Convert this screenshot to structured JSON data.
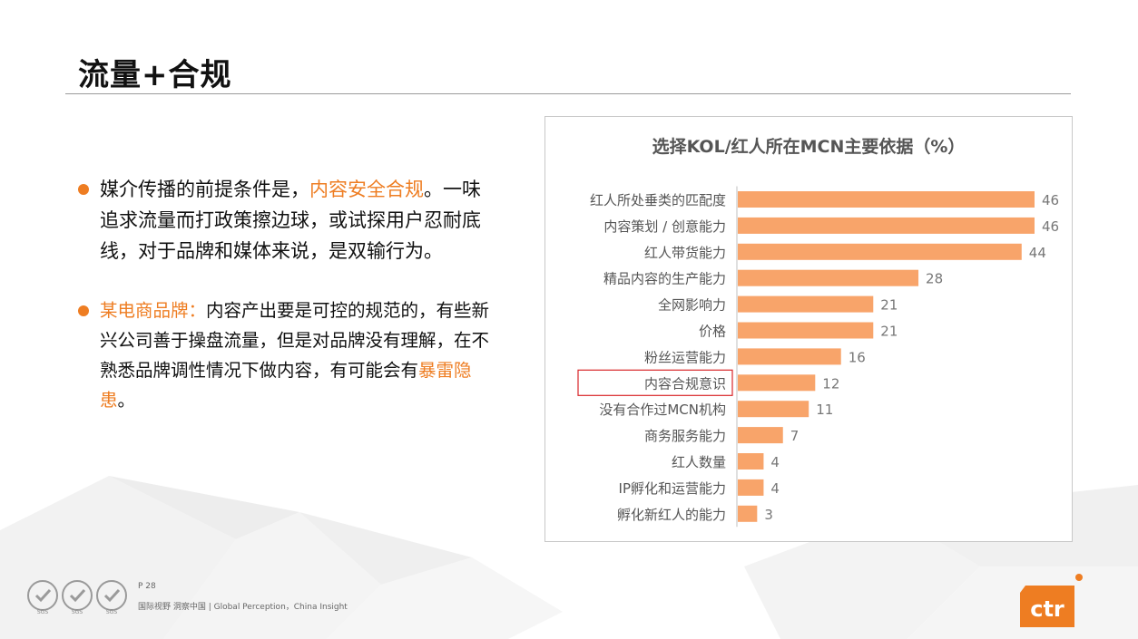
{
  "page": {
    "title": "流量+合规"
  },
  "bullets": [
    {
      "parts": [
        {
          "text": "媒介传播的前提条件是，",
          "highlight": false
        },
        {
          "text": "内容安全合规",
          "highlight": true
        },
        {
          "text": "。一味追求流量而打政策擦边球，或试探用户忍耐底线，对于品牌和媒体来说，是双输行为。",
          "highlight": false
        }
      ]
    },
    {
      "parts": [
        {
          "text": "某电商品牌：",
          "highlight": true
        },
        {
          "text": "内容产出要是可控的规范的，有些新兴公司善于操盘流量，但是对品牌没有理解，在不熟悉品牌调性情况下做内容，有可能会有",
          "highlight": false
        },
        {
          "text": "暴雷隐患",
          "highlight": true
        },
        {
          "text": "。",
          "highlight": false
        }
      ]
    }
  ],
  "chart_data": {
    "type": "bar",
    "orientation": "horizontal",
    "title": "选择KOL/红人所在MCN主要依据（%）",
    "categories": [
      "红人所处垂类的匹配度",
      "内容策划 / 创意能力",
      "红人带货能力",
      "精品内容的生产能力",
      "全网影响力",
      "价格",
      "粉丝运营能力",
      "内容合规意识",
      "没有合作过MCN机构",
      "商务服务能力",
      "红人数量",
      "IP孵化和运营能力",
      "孵化新红人的能力"
    ],
    "values": [
      46,
      46,
      44,
      28,
      21,
      21,
      16,
      12,
      11,
      7,
      4,
      4,
      3
    ],
    "highlighted_category": "内容合规意识",
    "bar_color": "#f8a46a",
    "highlight_box_color": "#d9262a",
    "grid": false
  },
  "footer": {
    "page_number": "P 28",
    "tagline": "国际视野 洞察中国 | Global Perception，China Insight",
    "logo_text": "ctr",
    "seal_text": "SGS"
  },
  "colors": {
    "accent": "#ee7d22",
    "title": "#111111",
    "chart_title": "#555555",
    "label": "#555555"
  }
}
